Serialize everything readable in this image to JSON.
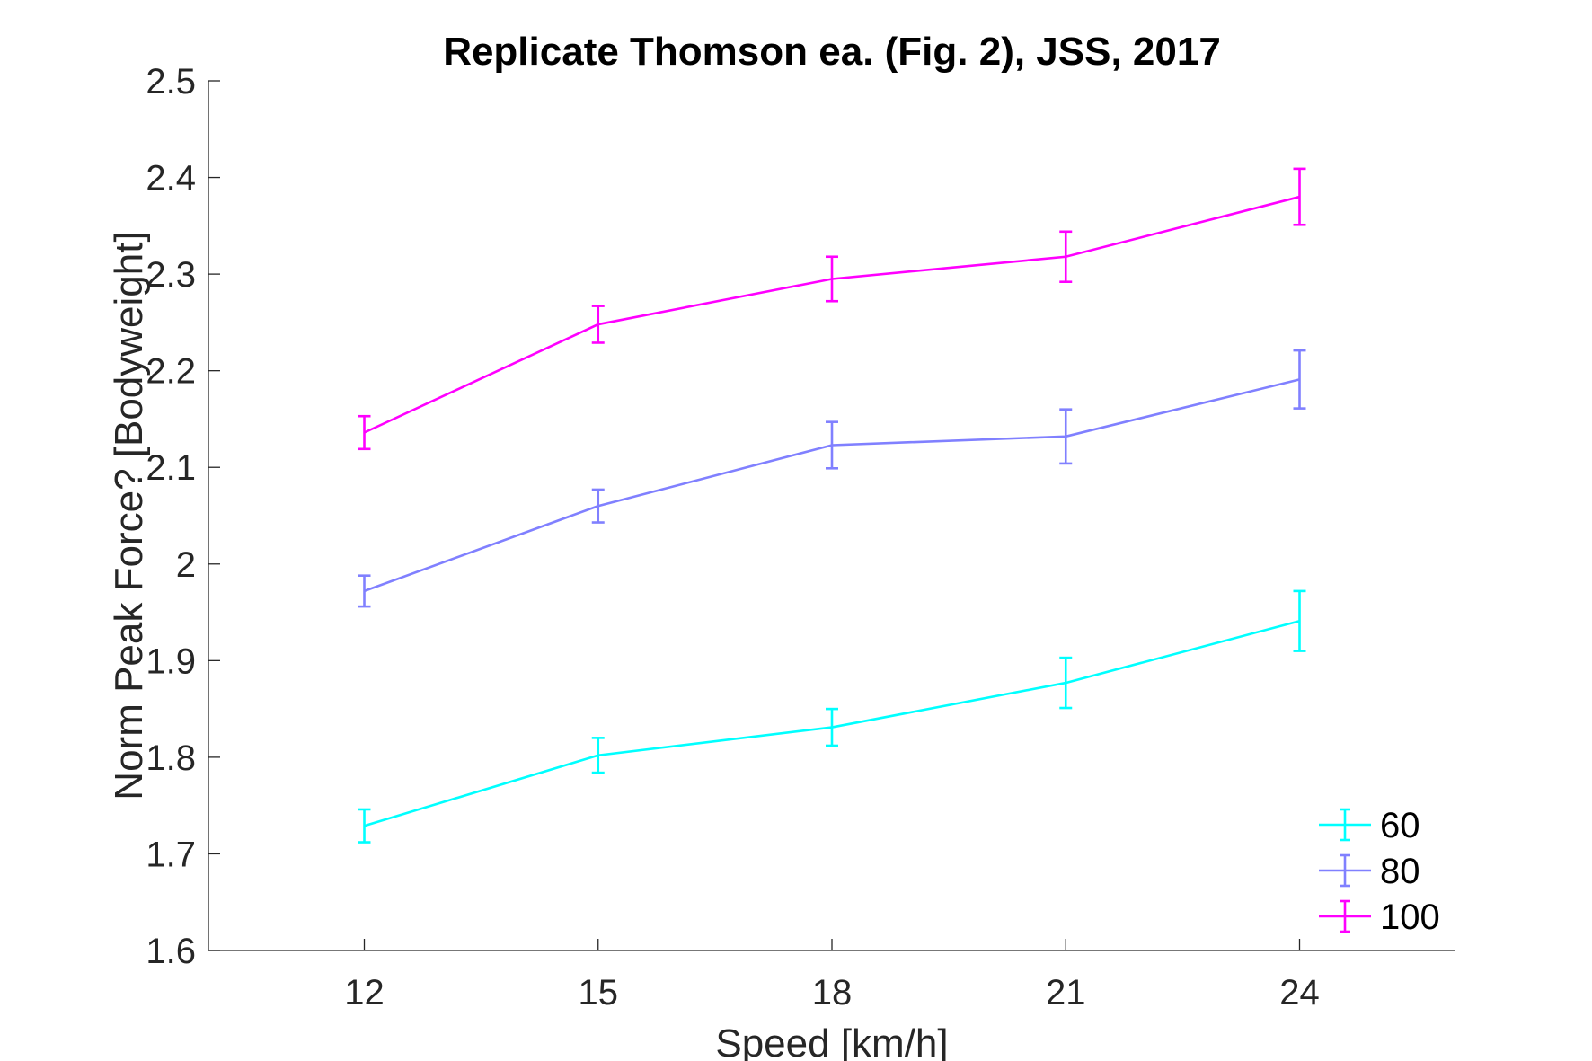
{
  "chart_data": {
    "type": "line",
    "title": "Replicate Thomson ea. (Fig. 2), JSS, 2017",
    "xlabel": "Speed [km/h]",
    "ylabel": "Norm Peak Force? [Bodyweight]",
    "x": [
      12,
      15,
      18,
      21,
      24
    ],
    "x_tick_labels": [
      "12",
      "15",
      "18",
      "21",
      "24"
    ],
    "xlim": [
      10,
      26
    ],
    "ylim": [
      1.6,
      2.5
    ],
    "y_ticks": [
      1.6,
      1.7,
      1.8,
      1.9,
      2.0,
      2.1,
      2.2,
      2.3,
      2.4,
      2.5
    ],
    "y_tick_labels": [
      "1.6",
      "1.7",
      "1.8",
      "1.9",
      "2",
      "2.1",
      "2.2",
      "2.3",
      "2.4",
      "2.5"
    ],
    "grid": false,
    "error_bars": true,
    "legend_position": "bottom-right",
    "series": [
      {
        "name": "60",
        "color": "#00ffff",
        "values": [
          1.729,
          1.802,
          1.831,
          1.877,
          1.941
        ],
        "err_low": [
          0.017,
          0.018,
          0.019,
          0.026,
          0.031
        ],
        "err_high": [
          0.017,
          0.018,
          0.019,
          0.026,
          0.031
        ]
      },
      {
        "name": "80",
        "color": "#8080ff",
        "values": [
          1.972,
          2.06,
          2.123,
          2.132,
          2.191
        ],
        "err_low": [
          0.016,
          0.017,
          0.024,
          0.028,
          0.03
        ],
        "err_high": [
          0.016,
          0.017,
          0.024,
          0.028,
          0.03
        ]
      },
      {
        "name": "100",
        "color": "#ff00ff",
        "values": [
          2.136,
          2.248,
          2.295,
          2.318,
          2.38
        ],
        "err_low": [
          0.017,
          0.019,
          0.023,
          0.026,
          0.029
        ],
        "err_high": [
          0.017,
          0.019,
          0.023,
          0.026,
          0.029
        ]
      }
    ]
  }
}
